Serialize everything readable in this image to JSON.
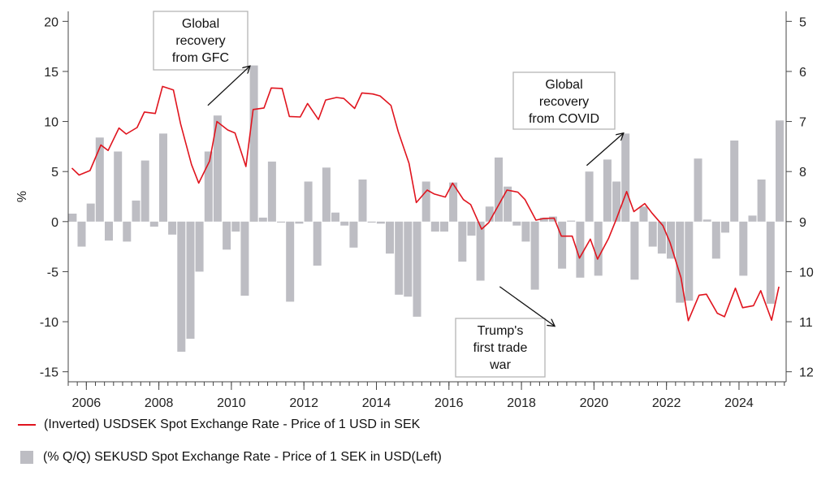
{
  "chart_data": {
    "type": "bar+line",
    "title": "",
    "ylabel_left": "%",
    "ylim_left": [
      -16,
      21
    ],
    "yticks_left": [
      20,
      15,
      10,
      5,
      0,
      -5,
      -10,
      -15
    ],
    "ylim_right": [
      12.2,
      4.8
    ],
    "yticks_right": [
      5,
      6,
      7,
      8,
      9,
      10,
      11,
      12
    ],
    "xlim": [
      2005.5,
      2025.3
    ],
    "xticks": [
      2006,
      2008,
      2010,
      2012,
      2014,
      2016,
      2018,
      2020,
      2022,
      2024
    ],
    "grid": false,
    "legend_position": "bottom-left",
    "series": [
      {
        "name": "(Inverted) USDSEK Spot Exchange Rate - Price of 1 USD in SEK",
        "type": "line",
        "axis": "right",
        "color": "#e0141e",
        "points": [
          [
            2005.6,
            7.93
          ],
          [
            2005.8,
            8.07
          ],
          [
            2006.1,
            7.98
          ],
          [
            2006.4,
            7.47
          ],
          [
            2006.6,
            7.58
          ],
          [
            2006.9,
            7.13
          ],
          [
            2007.1,
            7.25
          ],
          [
            2007.4,
            7.12
          ],
          [
            2007.6,
            6.81
          ],
          [
            2007.9,
            6.84
          ],
          [
            2008.1,
            6.3
          ],
          [
            2008.4,
            6.37
          ],
          [
            2008.6,
            7.05
          ],
          [
            2008.9,
            7.86
          ],
          [
            2009.1,
            8.23
          ],
          [
            2009.4,
            7.79
          ],
          [
            2009.6,
            7.0
          ],
          [
            2009.9,
            7.17
          ],
          [
            2010.1,
            7.23
          ],
          [
            2010.4,
            7.9
          ],
          [
            2010.6,
            6.76
          ],
          [
            2010.9,
            6.73
          ],
          [
            2011.1,
            6.33
          ],
          [
            2011.4,
            6.34
          ],
          [
            2011.6,
            6.9
          ],
          [
            2011.9,
            6.91
          ],
          [
            2012.1,
            6.64
          ],
          [
            2012.4,
            6.96
          ],
          [
            2012.6,
            6.57
          ],
          [
            2012.9,
            6.52
          ],
          [
            2013.1,
            6.54
          ],
          [
            2013.4,
            6.74
          ],
          [
            2013.6,
            6.43
          ],
          [
            2013.9,
            6.45
          ],
          [
            2014.1,
            6.49
          ],
          [
            2014.4,
            6.68
          ],
          [
            2014.6,
            7.2
          ],
          [
            2014.9,
            7.84
          ],
          [
            2015.1,
            8.62
          ],
          [
            2015.4,
            8.37
          ],
          [
            2015.6,
            8.45
          ],
          [
            2015.9,
            8.51
          ],
          [
            2016.1,
            8.23
          ],
          [
            2016.4,
            8.56
          ],
          [
            2016.6,
            8.66
          ],
          [
            2016.9,
            9.15
          ],
          [
            2017.1,
            9.02
          ],
          [
            2017.4,
            8.63
          ],
          [
            2017.6,
            8.37
          ],
          [
            2017.9,
            8.41
          ],
          [
            2018.1,
            8.56
          ],
          [
            2018.4,
            8.97
          ],
          [
            2018.6,
            8.94
          ],
          [
            2018.9,
            8.93
          ],
          [
            2019.1,
            9.29
          ],
          [
            2019.4,
            9.29
          ],
          [
            2019.6,
            9.73
          ],
          [
            2019.9,
            9.35
          ],
          [
            2020.1,
            9.75
          ],
          [
            2020.4,
            9.34
          ],
          [
            2020.6,
            8.98
          ],
          [
            2020.9,
            8.4
          ],
          [
            2021.1,
            8.8
          ],
          [
            2021.4,
            8.64
          ],
          [
            2021.6,
            8.83
          ],
          [
            2021.9,
            9.08
          ],
          [
            2022.1,
            9.42
          ],
          [
            2022.4,
            10.12
          ],
          [
            2022.6,
            10.98
          ],
          [
            2022.9,
            10.47
          ],
          [
            2023.1,
            10.45
          ],
          [
            2023.4,
            10.83
          ],
          [
            2023.6,
            10.9
          ],
          [
            2023.9,
            10.33
          ],
          [
            2024.1,
            10.72
          ],
          [
            2024.4,
            10.68
          ],
          [
            2024.6,
            10.38
          ],
          [
            2024.9,
            10.97
          ],
          [
            2025.1,
            10.3
          ]
        ]
      },
      {
        "name": "(% Q/Q) SEKUSD Spot Exchange Rate - Price of 1 SEK in USD(Left)",
        "type": "bar",
        "axis": "left",
        "color": "#bdbdc3",
        "points": [
          [
            2005.62,
            0.8
          ],
          [
            2005.87,
            -2.5
          ],
          [
            2006.12,
            1.8
          ],
          [
            2006.37,
            8.4
          ],
          [
            2006.62,
            -1.9
          ],
          [
            2006.87,
            7.0
          ],
          [
            2007.12,
            -2.0
          ],
          [
            2007.37,
            2.1
          ],
          [
            2007.62,
            6.1
          ],
          [
            2007.87,
            -0.5
          ],
          [
            2008.12,
            8.8
          ],
          [
            2008.37,
            -1.3
          ],
          [
            2008.62,
            -13.0
          ],
          [
            2008.87,
            -11.7
          ],
          [
            2009.12,
            -5.0
          ],
          [
            2009.37,
            7.0
          ],
          [
            2009.62,
            10.6
          ],
          [
            2009.87,
            -2.8
          ],
          [
            2010.12,
            -1.0
          ],
          [
            2010.37,
            -7.4
          ],
          [
            2010.62,
            15.6
          ],
          [
            2010.87,
            0.4
          ],
          [
            2011.12,
            6.0
          ],
          [
            2011.37,
            -0.1
          ],
          [
            2011.62,
            -8.0
          ],
          [
            2011.87,
            -0.2
          ],
          [
            2012.12,
            4.0
          ],
          [
            2012.37,
            -4.4
          ],
          [
            2012.62,
            5.4
          ],
          [
            2012.87,
            0.9
          ],
          [
            2013.12,
            -0.4
          ],
          [
            2013.37,
            -2.6
          ],
          [
            2013.62,
            4.2
          ],
          [
            2013.87,
            -0.1
          ],
          [
            2014.12,
            -0.2
          ],
          [
            2014.37,
            -3.2
          ],
          [
            2014.62,
            -7.3
          ],
          [
            2014.87,
            -7.5
          ],
          [
            2015.12,
            -9.5
          ],
          [
            2015.37,
            4.0
          ],
          [
            2015.62,
            -1.0
          ],
          [
            2015.87,
            -1.0
          ],
          [
            2016.12,
            3.9
          ],
          [
            2016.37,
            -4.0
          ],
          [
            2016.62,
            -1.4
          ],
          [
            2016.87,
            -5.9
          ],
          [
            2017.12,
            1.5
          ],
          [
            2017.37,
            6.4
          ],
          [
            2017.62,
            3.5
          ],
          [
            2017.87,
            -0.4
          ],
          [
            2018.12,
            -2.0
          ],
          [
            2018.37,
            -6.8
          ],
          [
            2018.62,
            0.4
          ],
          [
            2018.87,
            0.5
          ],
          [
            2019.12,
            -4.7
          ],
          [
            2019.37,
            0.1
          ],
          [
            2019.62,
            -5.6
          ],
          [
            2019.87,
            5.0
          ],
          [
            2020.12,
            -5.4
          ],
          [
            2020.37,
            6.2
          ],
          [
            2020.62,
            4.0
          ],
          [
            2020.87,
            8.8
          ],
          [
            2021.12,
            -5.8
          ],
          [
            2021.37,
            1.5
          ],
          [
            2021.62,
            -2.5
          ],
          [
            2021.87,
            -3.2
          ],
          [
            2022.12,
            -3.7
          ],
          [
            2022.37,
            -8.1
          ],
          [
            2022.62,
            -7.9
          ],
          [
            2022.87,
            6.3
          ],
          [
            2023.12,
            0.2
          ],
          [
            2023.37,
            -3.7
          ],
          [
            2023.62,
            -1.1
          ],
          [
            2023.87,
            8.1
          ],
          [
            2024.12,
            -5.4
          ],
          [
            2024.37,
            0.6
          ],
          [
            2024.62,
            4.2
          ],
          [
            2024.87,
            -8.2
          ],
          [
            2025.12,
            10.1
          ]
        ]
      }
    ],
    "annotations": [
      {
        "text": [
          "Global",
          "recovery",
          "from GFC"
        ],
        "arrow": "up-right",
        "arrow_from": [
          2009.35,
          11.6
        ],
        "arrow_to": [
          2010.5,
          15.5
        ]
      },
      {
        "text": [
          "Global",
          "recovery",
          "from COVID"
        ],
        "arrow": "up-right",
        "arrow_from": [
          2019.8,
          5.6
        ],
        "arrow_to": [
          2020.8,
          8.8
        ]
      },
      {
        "text": [
          "Trump's",
          "first trade",
          "war"
        ],
        "arrow": "down-right",
        "arrow_from": [
          2017.4,
          -6.5
        ],
        "arrow_to": [
          2018.9,
          -10.4
        ]
      }
    ]
  }
}
